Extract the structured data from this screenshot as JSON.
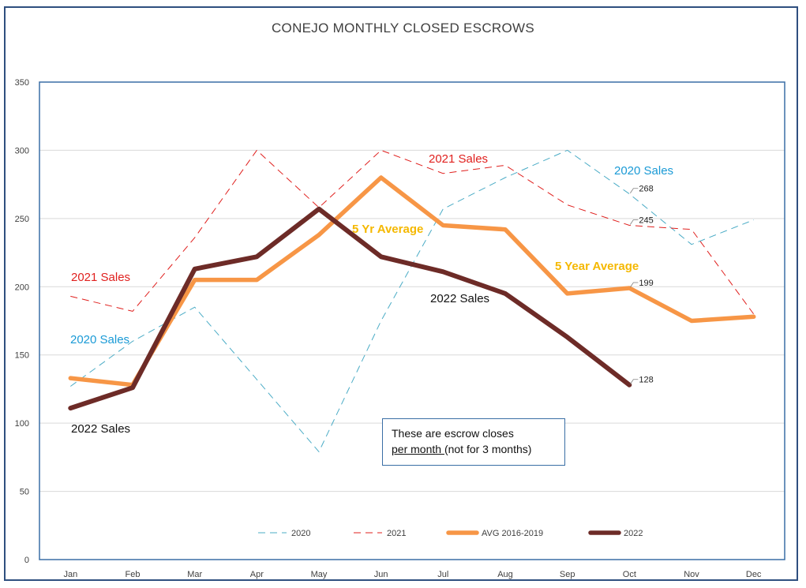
{
  "chart_data": {
    "type": "line",
    "title": "CONEJO MONTHLY CLOSED ESCROWS",
    "categories": [
      "Jan",
      "Feb",
      "Mar",
      "Apr",
      "May",
      "Jun",
      "Jul",
      "Aug",
      "Sep",
      "Oct",
      "Nov",
      "Dec"
    ],
    "ylim": [
      0,
      350
    ],
    "yticks": [
      0,
      50,
      100,
      150,
      200,
      250,
      300,
      350
    ],
    "grid": true,
    "legend_position": "bottom",
    "series": [
      {
        "name": "2020",
        "color": "#4bacc6",
        "style": "dashed",
        "values": [
          127,
          160,
          185,
          132,
          79,
          175,
          257,
          280,
          300,
          268,
          231,
          249
        ]
      },
      {
        "name": "2021",
        "color": "#e0201e",
        "style": "dashed",
        "values": [
          193,
          182,
          236,
          300,
          258,
          300,
          283,
          289,
          260,
          245,
          242,
          180
        ]
      },
      {
        "name": "AVG 2016-2019",
        "color": "#f79646",
        "style": "thick",
        "values": [
          133,
          128,
          205,
          205,
          238,
          280,
          245,
          242,
          195,
          199,
          175,
          178
        ]
      },
      {
        "name": "2022",
        "color": "#6d2b27",
        "style": "thick",
        "values": [
          111,
          126,
          213,
          222,
          257,
          222,
          211,
          195,
          163,
          128,
          null,
          null
        ]
      }
    ],
    "data_labels": [
      {
        "text": "268",
        "series": "2020",
        "category": "Oct"
      },
      {
        "text": "245",
        "series": "2021",
        "category": "Oct"
      },
      {
        "text": "199",
        "series": "AVG 2016-2019",
        "category": "Oct"
      },
      {
        "text": "128",
        "series": "2022",
        "category": "Oct"
      }
    ],
    "annotations": [
      {
        "text": "2021 Sales",
        "color": "#e0201e",
        "near": "Jan"
      },
      {
        "text": "2020 Sales",
        "color": "#1a9ad6",
        "near": "Jan"
      },
      {
        "text": "2022 Sales",
        "color": "#111111",
        "near": "Jan"
      },
      {
        "text": "2021 Sales",
        "color": "#e0201e",
        "near": "Jul"
      },
      {
        "text": "2020 Sales",
        "color": "#1a9ad6",
        "near": "Sep"
      },
      {
        "text": "5 Yr Average",
        "color": "#f5b800",
        "near": "Jun"
      },
      {
        "text": "2022 Sales",
        "color": "#111111",
        "near": "Jul"
      },
      {
        "text": "5 Year Average",
        "color": "#f5b800",
        "near": "Sep"
      }
    ]
  },
  "note": {
    "line1": "These are escrow closes",
    "line2_underlined": "per month ",
    "line2_rest": "(not for 3 months)"
  }
}
